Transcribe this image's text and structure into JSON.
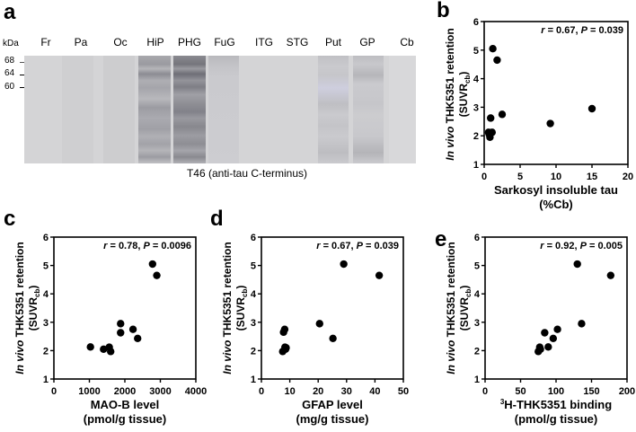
{
  "panels": {
    "a": {
      "letter": "a",
      "kda_label": "kDa",
      "mw_markers": [
        "68",
        "64",
        "60"
      ],
      "lanes": [
        "Fr",
        "Pa",
        "Oc",
        "HiP",
        "PHG",
        "FuG",
        "ITG",
        "STG",
        "Put",
        "GP",
        "Cb"
      ],
      "caption": "T46 (anti-tau C-terminus)"
    },
    "b": {
      "letter": "b"
    },
    "c": {
      "letter": "c"
    },
    "d": {
      "letter": "d"
    },
    "e": {
      "letter": "e"
    }
  },
  "chart_data": [
    {
      "panel": "b",
      "type": "scatter",
      "ylabel": "In vivo THK5351 retention (SUVRcb)",
      "xlabel": "Sarkosyl insoluble tau (%Cb)",
      "annotation": "r = 0.67, P = 0.039",
      "xlim": [
        0,
        20
      ],
      "ylim": [
        1,
        6
      ],
      "xticks": [
        0,
        5,
        10,
        15,
        20
      ],
      "yticks": [
        1,
        2,
        3,
        4,
        5,
        6
      ],
      "points": [
        [
          1.2,
          5.05
        ],
        [
          1.8,
          4.65
        ],
        [
          2.5,
          2.75
        ],
        [
          0.9,
          2.62
        ],
        [
          0.6,
          2.12
        ],
        [
          1.1,
          2.12
        ],
        [
          0.8,
          1.95
        ],
        [
          0.7,
          2.05
        ],
        [
          9.2,
          2.43
        ],
        [
          15.0,
          2.95
        ]
      ]
    },
    {
      "panel": "c",
      "type": "scatter",
      "ylabel": "In vivo THK5351 retention (SUVRcb)",
      "xlabel": "MAO-B level (pmol/g tissue)",
      "annotation": "r = 0.78, P = 0.0096",
      "xlim": [
        0,
        4000
      ],
      "ylim": [
        1,
        6
      ],
      "xticks": [
        0,
        1000,
        2000,
        3000,
        4000
      ],
      "yticks": [
        1,
        2,
        3,
        4,
        5,
        6
      ],
      "points": [
        [
          1030,
          2.13
        ],
        [
          1400,
          2.05
        ],
        [
          1560,
          2.12
        ],
        [
          1600,
          1.97
        ],
        [
          1880,
          2.95
        ],
        [
          1880,
          2.63
        ],
        [
          2230,
          2.75
        ],
        [
          2360,
          2.43
        ],
        [
          2780,
          5.05
        ],
        [
          2900,
          4.65
        ]
      ]
    },
    {
      "panel": "d",
      "type": "scatter",
      "ylabel": "In vivo THK5351 retention (SUVRcb)",
      "xlabel": "GFAP level (mg/g tissue)",
      "annotation": "r = 0.67, P = 0.039",
      "xlim": [
        0,
        50
      ],
      "ylim": [
        1,
        6
      ],
      "xticks": [
        0,
        10,
        20,
        30,
        40,
        50
      ],
      "yticks": [
        1,
        2,
        3,
        4,
        5,
        6
      ],
      "points": [
        [
          7.5,
          1.97
        ],
        [
          8.5,
          2.05
        ],
        [
          8.3,
          2.12
        ],
        [
          8.7,
          2.1
        ],
        [
          7.8,
          2.65
        ],
        [
          8.2,
          2.75
        ],
        [
          20.5,
          2.95
        ],
        [
          25.2,
          2.43
        ],
        [
          29.0,
          5.05
        ],
        [
          41.5,
          4.65
        ]
      ]
    },
    {
      "panel": "e",
      "type": "scatter",
      "ylabel": "In vivo THK5351 retention (SUVRcb)",
      "xlabel": "3H-THK5351 binding (pmol/g tissue)",
      "annotation": "r = 0.92, P = 0.005",
      "xlim": [
        0,
        200
      ],
      "ylim": [
        1,
        6
      ],
      "xticks": [
        0,
        50,
        100,
        150,
        200
      ],
      "yticks": [
        1,
        2,
        3,
        4,
        5,
        6
      ],
      "points": [
        [
          75,
          1.97
        ],
        [
          78,
          2.05
        ],
        [
          77,
          2.12
        ],
        [
          89,
          2.13
        ],
        [
          84,
          2.63
        ],
        [
          96,
          2.43
        ],
        [
          102,
          2.75
        ],
        [
          136,
          2.95
        ],
        [
          130,
          5.05
        ],
        [
          177,
          4.65
        ]
      ]
    }
  ],
  "labels": {
    "y_main_italic": "In vivo",
    "y_main_rest": " THK5351 retention",
    "y_sub_open": "(SUVR",
    "y_sub_sub": "cb",
    "y_sub_close": ")",
    "b_x1": "Sarkosyl insoluble tau",
    "b_x2": "(%Cb)",
    "c_x1": "MAO-B level",
    "c_x2": "(pmol/g tissue)",
    "d_x1": "GFAP level",
    "d_x2": "(mg/g tissue)",
    "e_x1_sup": "3",
    "e_x1": "H-THK5351 binding",
    "e_x2": "(pmol/g tissue)",
    "b_r": "r",
    "b_rest1": " = 0.67, ",
    "b_p": "P",
    "b_rest2": " = 0.039",
    "c_r": "r",
    "c_rest1": " = 0.78, ",
    "c_p": "P",
    "c_rest2": " = 0.0096",
    "d_r": "r",
    "d_rest1": " = 0.67, ",
    "d_p": "P",
    "d_rest2": " = 0.039",
    "e_r": "r",
    "e_rest1": " = 0.92, ",
    "e_p": "P",
    "e_rest2": " = 0.005"
  }
}
